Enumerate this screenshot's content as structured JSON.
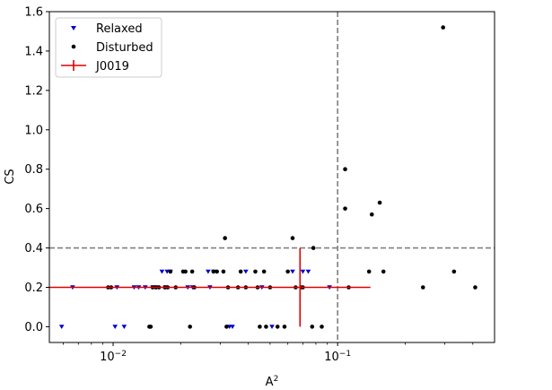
{
  "chart_data": {
    "type": "scatter",
    "xlabel_base": "A",
    "xlabel_sup": "2",
    "ylabel": "CS",
    "x_scale": "log",
    "xlim": [
      0.0052,
      0.5
    ],
    "ylim": [
      -0.08,
      1.6
    ],
    "x_ticks": [
      {
        "value": 0.01,
        "base": "10",
        "exp": "−2"
      },
      {
        "value": 0.1,
        "base": "10",
        "exp": "−1"
      }
    ],
    "y_ticks": [
      0.0,
      0.2,
      0.4,
      0.6,
      0.8,
      1.0,
      1.2,
      1.4,
      1.6
    ],
    "y_tick_labels": [
      "0.0",
      "0.2",
      "0.4",
      "0.6",
      "0.8",
      "1.0",
      "1.2",
      "1.4",
      "1.6"
    ],
    "grid": false,
    "legend_position": "upper-left",
    "thresholds": {
      "x": 0.1,
      "y": 0.4
    },
    "series": [
      {
        "name": "Relaxed",
        "marker": "triangle-down",
        "color": "#0000cc",
        "points": [
          [
            0.0059,
            0.0
          ],
          [
            0.0066,
            0.2
          ],
          [
            0.0102,
            0.0
          ],
          [
            0.0104,
            0.2
          ],
          [
            0.0112,
            0.0
          ],
          [
            0.0124,
            0.2
          ],
          [
            0.013,
            0.2
          ],
          [
            0.0139,
            0.2
          ],
          [
            0.015,
            0.2
          ],
          [
            0.0156,
            0.2
          ],
          [
            0.0165,
            0.28
          ],
          [
            0.0171,
            0.2
          ],
          [
            0.0174,
            0.28
          ],
          [
            0.018,
            0.28
          ],
          [
            0.0215,
            0.2
          ],
          [
            0.0226,
            0.2
          ],
          [
            0.0265,
            0.28
          ],
          [
            0.027,
            0.2
          ],
          [
            0.028,
            0.28
          ],
          [
            0.033,
            0.0
          ],
          [
            0.034,
            0.0
          ],
          [
            0.039,
            0.28
          ],
          [
            0.046,
            0.2
          ],
          [
            0.051,
            0.0
          ],
          [
            0.063,
            0.28
          ],
          [
            0.07,
            0.28
          ],
          [
            0.074,
            0.28
          ],
          [
            0.092,
            0.2
          ]
        ]
      },
      {
        "name": "Disturbed",
        "marker": "circle",
        "color": "#000000",
        "points": [
          [
            0.0095,
            0.2
          ],
          [
            0.0098,
            0.2
          ],
          [
            0.0145,
            0.0
          ],
          [
            0.0147,
            0.0
          ],
          [
            0.015,
            0.2
          ],
          [
            0.0155,
            0.2
          ],
          [
            0.016,
            0.2
          ],
          [
            0.017,
            0.2
          ],
          [
            0.0175,
            0.2
          ],
          [
            0.018,
            0.28
          ],
          [
            0.019,
            0.2
          ],
          [
            0.0205,
            0.28
          ],
          [
            0.021,
            0.28
          ],
          [
            0.022,
            0.0
          ],
          [
            0.0225,
            0.28
          ],
          [
            0.023,
            0.2
          ],
          [
            0.028,
            0.28
          ],
          [
            0.029,
            0.28
          ],
          [
            0.031,
            0.28
          ],
          [
            0.0315,
            0.45
          ],
          [
            0.032,
            0.0
          ],
          [
            0.0325,
            0.2
          ],
          [
            0.036,
            0.2
          ],
          [
            0.037,
            0.28
          ],
          [
            0.039,
            0.2
          ],
          [
            0.043,
            0.28
          ],
          [
            0.044,
            0.2
          ],
          [
            0.045,
            0.0
          ],
          [
            0.047,
            0.28
          ],
          [
            0.048,
            0.0
          ],
          [
            0.05,
            0.2
          ],
          [
            0.054,
            0.0
          ],
          [
            0.058,
            0.0
          ],
          [
            0.06,
            0.28
          ],
          [
            0.063,
            0.45
          ],
          [
            0.065,
            0.2
          ],
          [
            0.069,
            0.2
          ],
          [
            0.07,
            0.2
          ],
          [
            0.077,
            0.0
          ],
          [
            0.078,
            0.4
          ],
          [
            0.085,
            0.0
          ],
          [
            0.108,
            0.6
          ],
          [
            0.108,
            0.8
          ],
          [
            0.112,
            0.2
          ],
          [
            0.138,
            0.28
          ],
          [
            0.142,
            0.57
          ],
          [
            0.154,
            0.63
          ],
          [
            0.16,
            0.28
          ],
          [
            0.24,
            0.2
          ],
          [
            0.295,
            1.52
          ],
          [
            0.33,
            0.28
          ],
          [
            0.41,
            0.2
          ]
        ]
      }
    ],
    "highlight": {
      "name": "J0019",
      "color": "#e00000",
      "x": 0.068,
      "y": 0.2,
      "xerr_range": [
        0.0052,
        0.14
      ],
      "yerr_range": [
        0.0,
        0.4
      ]
    }
  }
}
